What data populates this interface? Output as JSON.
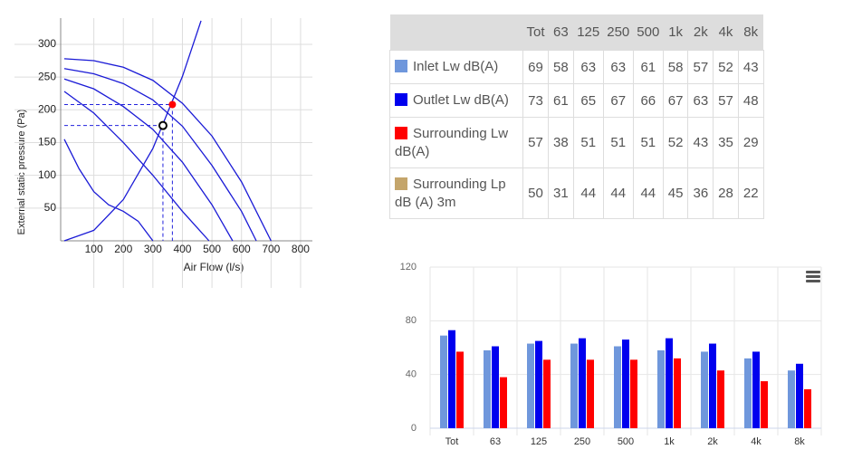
{
  "chart_data": [
    {
      "type": "line",
      "x_label": "Air Flow (l/s)",
      "y_label": "External static pressure (Pa)",
      "xlim": [
        0,
        840
      ],
      "ylim": [
        0,
        340
      ],
      "xticks": [
        100,
        200,
        300,
        400,
        500,
        600,
        700,
        800
      ],
      "yticks": [
        50,
        100,
        150,
        200,
        250,
        300
      ],
      "grid": true,
      "series": [
        {
          "color": "#1a1ad6",
          "x": [
            0,
            100,
            200,
            300,
            400,
            500,
            600,
            700
          ],
          "values": [
            278,
            275,
            265,
            245,
            210,
            160,
            90,
            0
          ]
        },
        {
          "color": "#1a1ad6",
          "x": [
            0,
            100,
            200,
            300,
            400,
            500,
            600,
            650
          ],
          "values": [
            263,
            255,
            240,
            215,
            175,
            115,
            45,
            0
          ]
        },
        {
          "color": "#1a1ad6",
          "x": [
            0,
            100,
            200,
            300,
            400,
            500,
            570
          ],
          "values": [
            247,
            232,
            205,
            170,
            120,
            55,
            0
          ]
        },
        {
          "color": "#1a1ad6",
          "x": [
            0,
            100,
            200,
            300,
            400,
            490
          ],
          "values": [
            228,
            195,
            150,
            100,
            45,
            0
          ]
        },
        {
          "color": "#1a1ad6",
          "x": [
            0,
            50,
            100,
            150,
            200,
            250,
            300
          ],
          "values": [
            155,
            110,
            75,
            55,
            45,
            30,
            0
          ]
        },
        {
          "color": "#1a1ad6",
          "x": [
            0,
            100,
            200,
            300,
            400,
            463
          ],
          "values": [
            0,
            16,
            63,
            141,
            251,
            336
          ]
        }
      ],
      "points": [
        {
          "x": 366,
          "y": 208,
          "color": "#ff0000"
        },
        {
          "x": 334,
          "y": 176,
          "color": "#ffffff"
        }
      ]
    },
    {
      "type": "bar",
      "categories": [
        "Tot",
        "63",
        "125",
        "250",
        "500",
        "1k",
        "2k",
        "4k",
        "8k"
      ],
      "ylim": [
        0,
        120
      ],
      "yticks": [
        0,
        40,
        80,
        120
      ],
      "grid": true,
      "series": [
        {
          "color": "#6f97dc",
          "values": [
            69,
            58,
            63,
            63,
            61,
            58,
            57,
            52,
            43
          ]
        },
        {
          "color": "#0000ee",
          "values": [
            73,
            61,
            65,
            67,
            66,
            67,
            63,
            57,
            48
          ]
        },
        {
          "color": "#ff0000",
          "values": [
            57,
            38,
            51,
            51,
            51,
            52,
            43,
            35,
            29
          ]
        }
      ]
    }
  ],
  "table": {
    "header": [
      "Tot",
      "63",
      "125",
      "250",
      "500",
      "1k",
      "2k",
      "4k",
      "8k"
    ],
    "rows": [
      {
        "label": "Inlet Lw dB(A)",
        "color": "#6f97dc",
        "values": [
          69,
          58,
          63,
          63,
          61,
          58,
          57,
          52,
          43
        ]
      },
      {
        "label": "Outlet Lw dB(A)",
        "color": "#0000ee",
        "values": [
          73,
          61,
          65,
          67,
          66,
          67,
          63,
          57,
          48
        ]
      },
      {
        "label": "Surrounding Lw dB(A)",
        "color": "#ff0000",
        "values": [
          57,
          38,
          51,
          51,
          51,
          52,
          43,
          35,
          29
        ]
      },
      {
        "label": "Surrounding Lp dB (A) 3m",
        "color": "#c4a56b",
        "values": [
          50,
          31,
          44,
          44,
          44,
          45,
          36,
          28,
          22
        ]
      }
    ]
  }
}
